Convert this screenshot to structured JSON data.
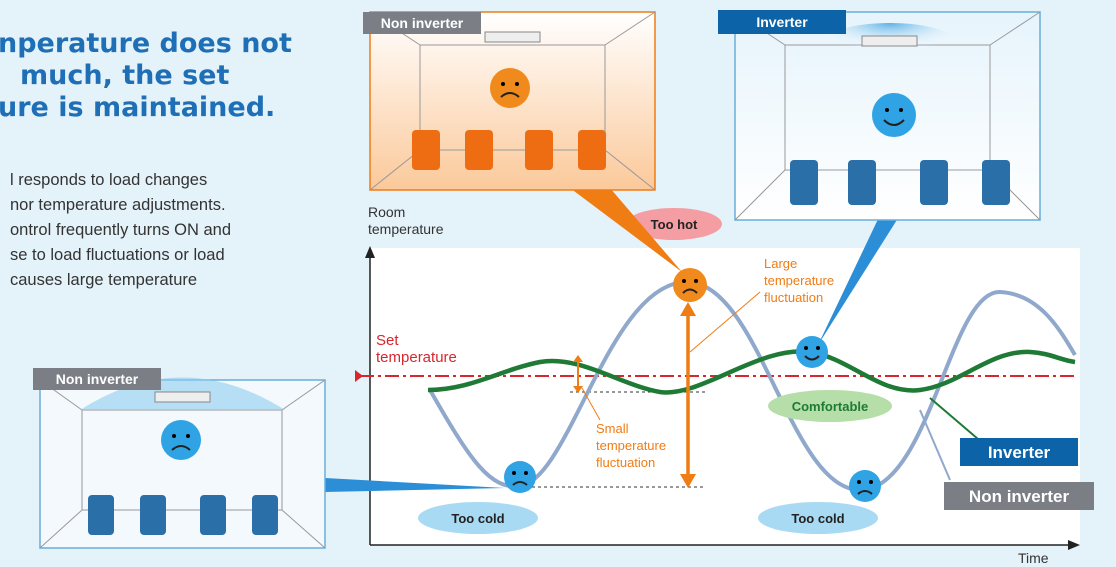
{
  "header": {
    "title_lines": [
      "nperature does not",
      "much, the set",
      "ure is maintained."
    ]
  },
  "body": {
    "lines": [
      "l responds to load changes",
      "nor temperature adjustments.",
      "ontrol frequently turns ON and",
      "se to load fluctuations or load",
      "causes large temperature"
    ]
  },
  "rooms": [
    {
      "label": "Non inverter"
    },
    {
      "label": "Inverter"
    },
    {
      "label": "Non inverter"
    }
  ],
  "graph": {
    "y_axis_label": [
      "Room",
      "temperature"
    ],
    "x_axis_label": "Time",
    "set_temperature": [
      "Set",
      "temperature"
    ],
    "too_hot": "Too hot",
    "too_cold": [
      "Too cold",
      "Too cold"
    ],
    "comfortable": "Comfortable",
    "large_fluctuation": [
      "Large",
      "temperature",
      "fluctuation"
    ],
    "small_fluctuation": [
      "Small",
      "temperature",
      "fluctuation"
    ],
    "legend": {
      "inverter": "Inverter",
      "non_inverter": "Non inverter"
    }
  }
}
